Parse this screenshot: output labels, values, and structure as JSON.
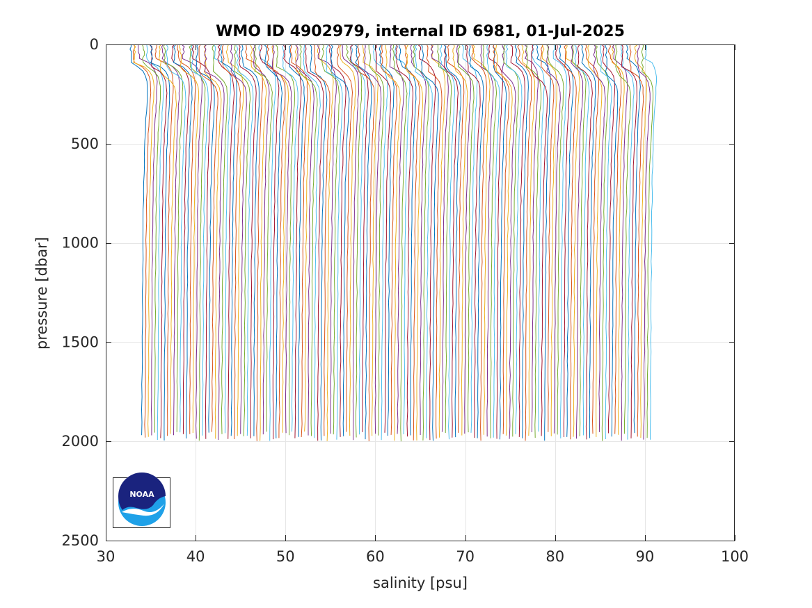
{
  "chart_data": {
    "type": "line",
    "title": "WMO ID 4902979, internal ID 6981, 01-Jul-2025",
    "xlabel": "salinity [psu]",
    "ylabel": "pressure [dbar]",
    "xlim": [
      30,
      100
    ],
    "ylim": [
      0,
      2500
    ],
    "y_reversed": true,
    "grid": true,
    "xticks": [
      "30",
      "40",
      "50",
      "60",
      "70",
      "80",
      "90",
      "100"
    ],
    "yticks": [
      "0",
      "500",
      "1000",
      "1500",
      "2000",
      "2500"
    ],
    "xtick_values": [
      30,
      40,
      50,
      60,
      70,
      80,
      90,
      100
    ],
    "ytick_values": [
      0,
      500,
      1000,
      1500,
      2000,
      2500
    ],
    "series_description": "waterfall of salinity profiles, each offset by a constant salinity step",
    "profile_count": 160,
    "first_profile_deep_salinity": 34.9,
    "last_profile_deep_salinity": 91.5,
    "surface_salinity_anomaly_first": -2.2,
    "surface_salinity_anomaly_last": -1.6,
    "max_pressure": 2000,
    "colors": [
      "#0072BD",
      "#D95319",
      "#EDB120",
      "#7E2F8E",
      "#77AC30",
      "#4DBEEE",
      "#A2142F"
    ]
  },
  "logo": {
    "name": "NOAA",
    "text": "NOAA",
    "colors": {
      "dark": "#1a237e",
      "light": "#1fa1e8",
      "white": "#ffffff"
    }
  }
}
